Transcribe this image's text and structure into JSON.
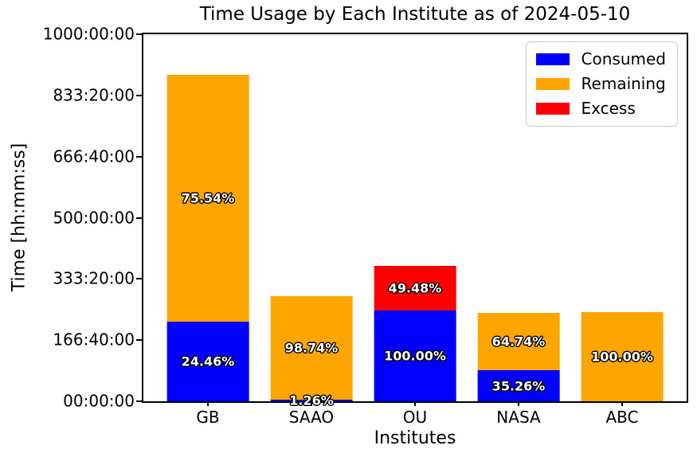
{
  "chart_data": {
    "type": "bar",
    "stacked": true,
    "title": "Time Usage by Each Institute as of 2024-05-10",
    "xlabel": "Institutes",
    "ylabel": "Time [hh:mm:ss]",
    "ylim_hours": [
      0,
      1000
    ],
    "grid": false,
    "yticks": [
      {
        "label": "00:00:00",
        "hours": 0
      },
      {
        "label": "166:40:00",
        "hours": 166.6667
      },
      {
        "label": "333:20:00",
        "hours": 333.3333
      },
      {
        "label": "500:00:00",
        "hours": 500
      },
      {
        "label": "666:40:00",
        "hours": 666.6667
      },
      {
        "label": "833:20:00",
        "hours": 833.3333
      },
      {
        "label": "1000:00:00",
        "hours": 1000
      }
    ],
    "categories": [
      "GB",
      "SAAO",
      "OU",
      "NASA",
      "ABC"
    ],
    "series_colors": {
      "consumed": "#0000ff",
      "remaining": "#ffa500",
      "excess": "#ff0000"
    },
    "legend": {
      "position": "upper right",
      "entries": [
        {
          "label": "Consumed",
          "color": "#0000ff"
        },
        {
          "label": "Remaining",
          "color": "#ffa500"
        },
        {
          "label": "Excess",
          "color": "#ff0000"
        }
      ]
    },
    "bars": [
      {
        "institute": "GB",
        "segments": [
          {
            "name": "consumed",
            "hours": 217.5,
            "label": "24.46%"
          },
          {
            "name": "remaining",
            "hours": 672.0,
            "label": "75.54%"
          }
        ]
      },
      {
        "institute": "SAAO",
        "segments": [
          {
            "name": "consumed",
            "hours": 3.6,
            "label": "1.26%"
          },
          {
            "name": "remaining",
            "hours": 282.2,
            "label": "98.74%"
          }
        ]
      },
      {
        "institute": "OU",
        "segments": [
          {
            "name": "consumed",
            "hours": 247.3,
            "label": "100.00%"
          },
          {
            "name": "excess",
            "hours": 122.4,
            "label": "49.48%"
          }
        ]
      },
      {
        "institute": "NASA",
        "segments": [
          {
            "name": "consumed",
            "hours": 84.6,
            "label": "35.26%"
          },
          {
            "name": "remaining",
            "hours": 155.3,
            "label": "64.74%"
          }
        ]
      },
      {
        "institute": "ABC",
        "segments": [
          {
            "name": "remaining",
            "hours": 243.0,
            "label": "100.00%"
          }
        ]
      }
    ]
  }
}
